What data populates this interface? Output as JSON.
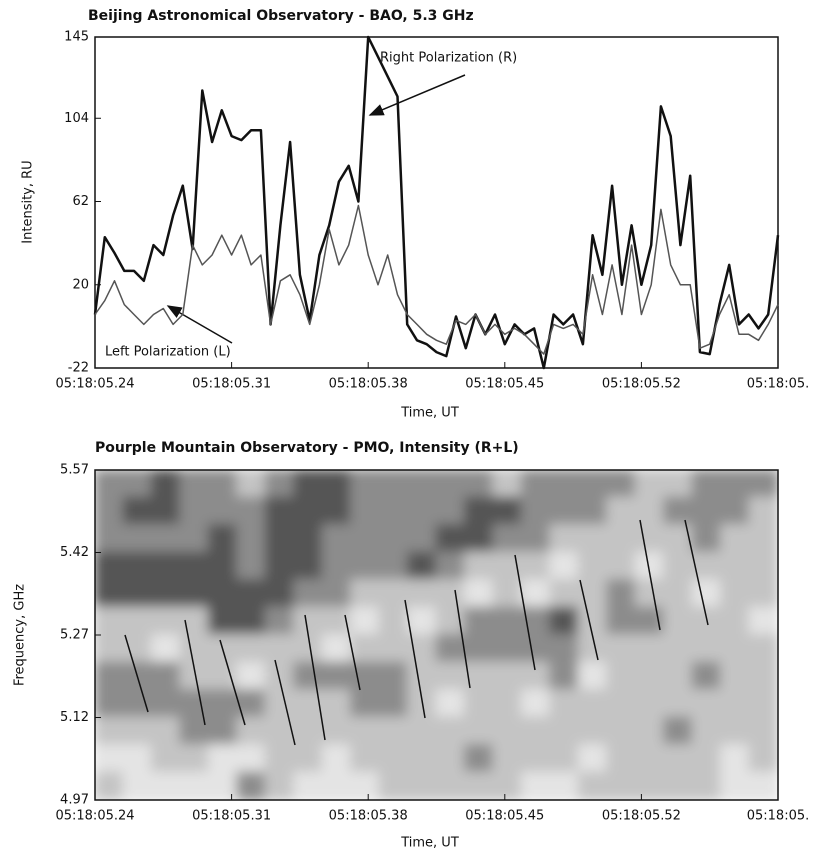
{
  "chart_data": [
    {
      "type": "line",
      "title": "Beijing Astronomical Observatory - BAO, 5.3 GHz",
      "xlabel": "Time, UT",
      "ylabel": "Intensity, RU",
      "x": [
        5.24,
        5.245,
        5.25,
        5.255,
        5.26,
        5.265,
        5.27,
        5.275,
        5.28,
        5.285,
        5.29,
        5.295,
        5.3,
        5.305,
        5.31,
        5.315,
        5.32,
        5.325,
        5.33,
        5.335,
        5.34,
        5.345,
        5.35,
        5.355,
        5.36,
        5.365,
        5.37,
        5.375,
        5.38,
        5.385,
        5.39,
        5.395,
        5.4,
        5.405,
        5.41,
        5.415,
        5.42,
        5.425,
        5.43,
        5.435,
        5.44,
        5.445,
        5.45,
        5.455,
        5.46,
        5.465,
        5.47,
        5.475,
        5.48,
        5.485,
        5.49,
        5.495,
        5.5,
        5.505,
        5.51,
        5.515,
        5.52,
        5.525,
        5.53,
        5.535,
        5.54,
        5.545,
        5.55,
        5.555,
        5.56,
        5.565,
        5.57,
        5.575,
        5.58,
        5.585,
        5.59
      ],
      "series": [
        {
          "name": "Right Polarization (R)",
          "color": "#111111",
          "values": [
            5,
            44,
            36,
            27,
            27,
            22,
            40,
            35,
            55,
            70,
            38,
            118,
            92,
            108,
            95,
            93,
            98,
            98,
            0,
            50,
            92,
            25,
            2,
            35,
            50,
            72,
            80,
            62,
            145,
            135,
            125,
            115,
            0,
            -8,
            -10,
            -14,
            -16,
            4,
            -12,
            5,
            -5,
            5,
            -10,
            0,
            -5,
            -2,
            -22,
            5,
            0,
            5,
            -10,
            45,
            25,
            70,
            20,
            50,
            20,
            40,
            110,
            95,
            40,
            75,
            -14,
            -15,
            10,
            30,
            0,
            5,
            -2,
            5,
            45
          ]
        },
        {
          "name": "Left Polarization (L)",
          "color": "#555555",
          "values": [
            5,
            12,
            22,
            10,
            5,
            0,
            5,
            8,
            0,
            5,
            40,
            30,
            35,
            45,
            35,
            45,
            30,
            35,
            0,
            22,
            25,
            15,
            0,
            20,
            48,
            30,
            40,
            60,
            35,
            20,
            35,
            15,
            5,
            0,
            -5,
            -8,
            -10,
            2,
            0,
            5,
            -5,
            0,
            -5,
            -2,
            -5,
            -10,
            -15,
            0,
            -2,
            0,
            -5,
            25,
            5,
            30,
            5,
            40,
            5,
            20,
            58,
            30,
            20,
            20,
            -12,
            -10,
            5,
            15,
            -5,
            -5,
            -8,
            0,
            10
          ]
        }
      ],
      "annotations": [
        {
          "text": "Right Polarization (R)"
        },
        {
          "text": "Left Polarization (L)"
        }
      ],
      "xlim": [
        5.24,
        5.59
      ],
      "xticks": [
        {
          "value": 5.24,
          "label": "05:18:05.24"
        },
        {
          "value": 5.31,
          "label": "05:18:05.31"
        },
        {
          "value": 5.38,
          "label": "05:18:05.38"
        },
        {
          "value": 5.45,
          "label": "05:18:05.45"
        },
        {
          "value": 5.52,
          "label": "05:18:05.52"
        },
        {
          "value": 5.59,
          "label": "05:18:05."
        }
      ],
      "ylim": [
        -22,
        145
      ],
      "yticks": [
        -22,
        20,
        62,
        104,
        145
      ]
    },
    {
      "type": "contour",
      "title": "Pourple Mountain Observatory - PMO, Intensity (R+L)",
      "xlabel": "Time, UT",
      "ylabel": "Frequency, GHz",
      "colors": [
        "#e4e4e4",
        "#c4c4c4",
        "#8c8c8c",
        "#555555"
      ],
      "z": [
        [
          2,
          2,
          3,
          2,
          2,
          1,
          2,
          3,
          3,
          2,
          2,
          2,
          2,
          2,
          1,
          2,
          2,
          2,
          2,
          1,
          1,
          2,
          2,
          2
        ],
        [
          2,
          3,
          3,
          2,
          2,
          2,
          3,
          3,
          3,
          2,
          2,
          2,
          2,
          3,
          3,
          2,
          2,
          2,
          1,
          1,
          2,
          2,
          2,
          1
        ],
        [
          2,
          2,
          2,
          2,
          3,
          2,
          3,
          3,
          2,
          2,
          2,
          2,
          3,
          3,
          2,
          2,
          1,
          1,
          1,
          1,
          1,
          2,
          1,
          1
        ],
        [
          3,
          3,
          3,
          3,
          3,
          2,
          3,
          3,
          2,
          2,
          2,
          3,
          2,
          1,
          1,
          1,
          0,
          1,
          1,
          0,
          1,
          1,
          1,
          1
        ],
        [
          3,
          3,
          3,
          3,
          3,
          3,
          3,
          2,
          2,
          1,
          1,
          1,
          1,
          0,
          1,
          0,
          1,
          1,
          2,
          1,
          1,
          0,
          1,
          1
        ],
        [
          1,
          1,
          1,
          1,
          3,
          3,
          2,
          1,
          1,
          0,
          1,
          0,
          1,
          2,
          2,
          2,
          3,
          1,
          2,
          2,
          1,
          1,
          1,
          0
        ],
        [
          1,
          1,
          0,
          1,
          1,
          1,
          1,
          1,
          0,
          1,
          1,
          1,
          2,
          2,
          2,
          2,
          2,
          1,
          1,
          1,
          1,
          1,
          1,
          1
        ],
        [
          2,
          2,
          2,
          1,
          1,
          0,
          1,
          2,
          2,
          2,
          2,
          1,
          1,
          1,
          1,
          1,
          2,
          0,
          1,
          1,
          1,
          2,
          1,
          1
        ],
        [
          2,
          2,
          2,
          2,
          2,
          2,
          1,
          1,
          1,
          2,
          2,
          1,
          0,
          1,
          1,
          0,
          1,
          1,
          1,
          1,
          1,
          1,
          1,
          1
        ],
        [
          1,
          1,
          1,
          2,
          2,
          1,
          1,
          1,
          1,
          1,
          1,
          1,
          1,
          1,
          1,
          1,
          1,
          1,
          1,
          1,
          2,
          1,
          1,
          1
        ],
        [
          0,
          0,
          1,
          1,
          0,
          0,
          1,
          1,
          0,
          1,
          1,
          1,
          1,
          2,
          1,
          1,
          1,
          0,
          1,
          1,
          1,
          1,
          0,
          1
        ],
        [
          1,
          0,
          0,
          0,
          0,
          2,
          1,
          0,
          0,
          0,
          1,
          1,
          1,
          1,
          1,
          0,
          0,
          1,
          1,
          1,
          1,
          1,
          0,
          0
        ]
      ],
      "xlim": [
        5.24,
        5.59
      ],
      "xticks": [
        {
          "value": 5.24,
          "label": "05:18:05.24"
        },
        {
          "value": 5.31,
          "label": "05:18:05.31"
        },
        {
          "value": 5.38,
          "label": "05:18:05.38"
        },
        {
          "value": 5.45,
          "label": "05:18:05.45"
        },
        {
          "value": 5.52,
          "label": "05:18:05.52"
        },
        {
          "value": 5.59,
          "label": "05:18:05."
        }
      ],
      "ylim": [
        4.97,
        5.57
      ],
      "yticks": [
        4.97,
        5.12,
        5.27,
        5.42,
        5.57
      ]
    }
  ]
}
